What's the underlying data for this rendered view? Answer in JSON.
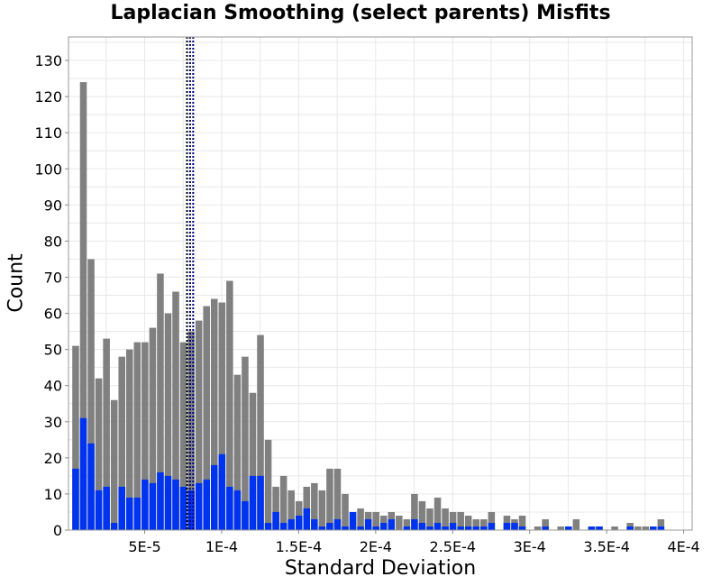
{
  "chart_data": {
    "type": "bar",
    "title": "Laplacian Smoothing (select parents) Misfits",
    "xlabel": "Standard Deviation",
    "ylabel": "Count",
    "xlim": [
      5.5e-07,
      0.0004055
    ],
    "ylim": [
      0,
      136.5
    ],
    "bin_start": 5.5e-06,
    "bin_width": 5e-06,
    "x_ticks": [
      {
        "value": 5e-05,
        "label": "5E-5"
      },
      {
        "value": 0.0001,
        "label": "1E-4"
      },
      {
        "value": 0.00015,
        "label": "1.5E-4"
      },
      {
        "value": 0.0002,
        "label": "2E-4"
      },
      {
        "value": 0.00025,
        "label": "2.5E-4"
      },
      {
        "value": 0.0003,
        "label": "3E-4"
      },
      {
        "value": 0.00035,
        "label": "3.5E-4"
      },
      {
        "value": 0.0004,
        "label": "4E-4"
      }
    ],
    "y_ticks": [
      0,
      10,
      20,
      30,
      40,
      50,
      60,
      70,
      80,
      90,
      100,
      110,
      120,
      130
    ],
    "grid": true,
    "series": [
      {
        "color": "#808080",
        "values": [
          51,
          124,
          75,
          42,
          53,
          36,
          48,
          50,
          52,
          52,
          56,
          71,
          60,
          66,
          52,
          55,
          58,
          62,
          64,
          63,
          69,
          43,
          48,
          38,
          54,
          25,
          12,
          15,
          11,
          8,
          12,
          13,
          11,
          17,
          17,
          10,
          4,
          6,
          5,
          5,
          4,
          5,
          4,
          3,
          10,
          8,
          6,
          9,
          6,
          5,
          5,
          4,
          3,
          3,
          5,
          0,
          4,
          3,
          4,
          0,
          1,
          3,
          0,
          1,
          1,
          3,
          0,
          1,
          1,
          0,
          1,
          0,
          2,
          1,
          1,
          1,
          3
        ]
      },
      {
        "color": "#0033ee",
        "values": [
          17,
          31,
          24,
          11,
          12,
          2,
          12,
          9,
          9,
          14,
          13,
          16,
          15,
          14,
          12,
          11,
          13,
          14,
          18,
          21,
          12,
          11,
          8,
          15,
          15,
          2,
          5,
          2,
          3,
          4,
          6,
          3,
          1,
          2,
          3,
          1,
          5,
          1,
          3,
          1,
          2,
          3,
          0,
          1,
          3,
          2,
          1,
          2,
          1,
          2,
          1,
          1,
          1,
          1,
          2,
          0,
          2,
          2,
          1,
          0,
          0,
          1,
          0,
          0,
          1,
          0,
          0,
          1,
          1,
          0,
          0,
          0,
          1,
          0,
          0,
          1,
          1
        ]
      }
    ],
    "vertical_lines": [
      {
        "x": 7.75e-05,
        "color": "#000000",
        "style": "dotted"
      },
      {
        "x": 7.95e-05,
        "color": "#000080",
        "style": "dotted"
      },
      {
        "x": 8.15e-05,
        "color": "#000080",
        "style": "dotted"
      }
    ]
  }
}
